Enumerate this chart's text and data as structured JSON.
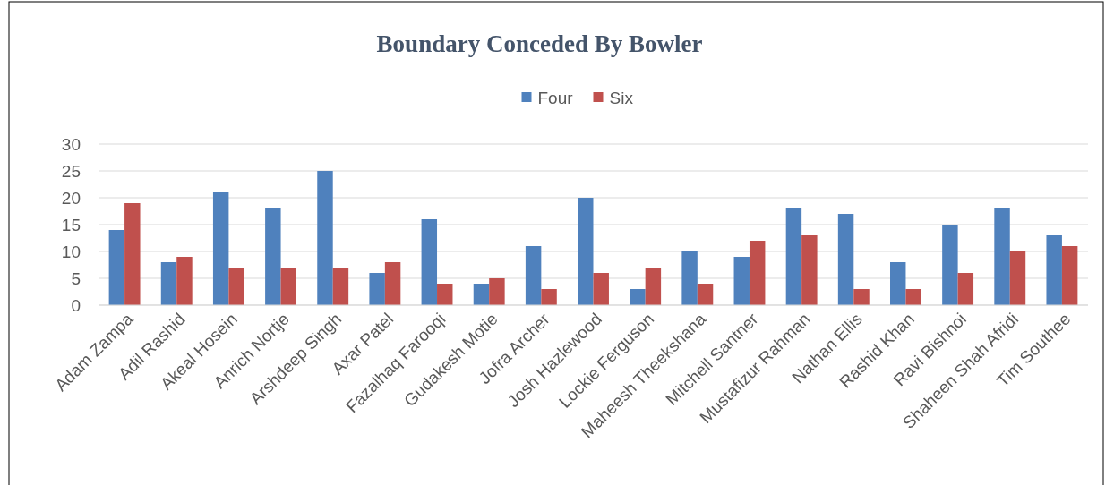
{
  "chart_data": {
    "type": "bar",
    "title": "Boundary Conceded By Bowler",
    "categories": [
      "Adam Zampa",
      "Adil Rashid",
      "Akeal Hosein",
      "Anrich Nortje",
      "Arshdeep Singh",
      "Axar Patel",
      "Fazalhaq Farooqi",
      "Gudakesh Motie",
      "Jofra Archer",
      "Josh Hazlewood",
      "Lockie Ferguson",
      "Maheesh Theekshana",
      "Mitchell Santner",
      "Mustafizur Rahman",
      "Nathan Ellis",
      "Rashid Khan",
      "Ravi Bishnoi",
      "Shaheen Shah Afridi",
      "Tim Southee"
    ],
    "series": [
      {
        "name": "Four",
        "color": "#4f81bd",
        "values": [
          14,
          8,
          21,
          18,
          25,
          6,
          16,
          4,
          11,
          20,
          3,
          10,
          9,
          18,
          17,
          8,
          15,
          18,
          13
        ]
      },
      {
        "name": "Six",
        "color": "#c0504d",
        "values": [
          19,
          9,
          7,
          7,
          7,
          8,
          4,
          5,
          3,
          6,
          7,
          4,
          12,
          13,
          3,
          3,
          6,
          10,
          11
        ]
      }
    ],
    "ylim": [
      0,
      30
    ],
    "yticks": [
      0,
      5,
      10,
      15,
      20,
      25,
      30
    ],
    "grid": "y",
    "legend": "top"
  }
}
